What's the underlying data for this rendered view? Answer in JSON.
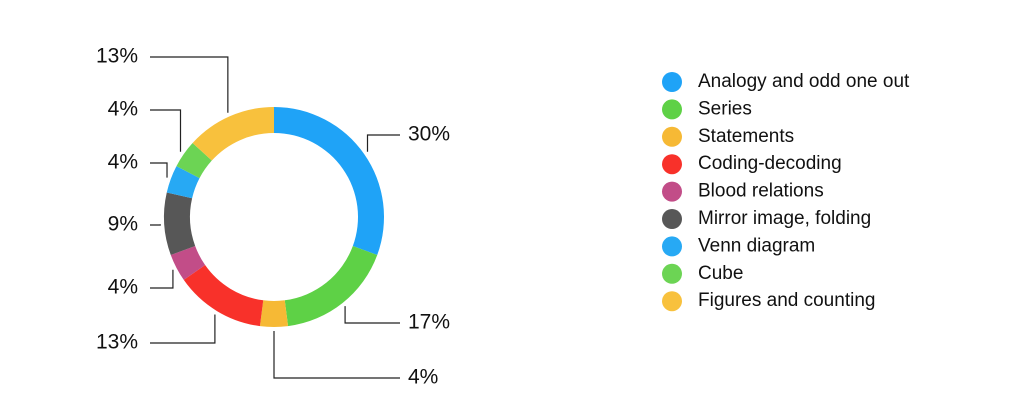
{
  "chart_data": {
    "type": "donut",
    "categories": [
      "Analogy and odd one out",
      "Series",
      "Statements",
      "Coding-decoding",
      "Blood relations",
      "Mirror image, folding",
      "Venn diagram",
      "Cube",
      "Figures and counting"
    ],
    "values": [
      30,
      17,
      4,
      13,
      4,
      9,
      4,
      4,
      13
    ],
    "value_labels": [
      "30%",
      "17%",
      "4%",
      "13%",
      "4%",
      "9%",
      "4%",
      "4%",
      "13%"
    ],
    "colors": [
      "#1fa3f7",
      "#5ed146",
      "#f6b935",
      "#f8312a",
      "#c24d88",
      "#575757",
      "#27a9f4",
      "#6cd454",
      "#f8c13d"
    ],
    "legend": "right"
  }
}
